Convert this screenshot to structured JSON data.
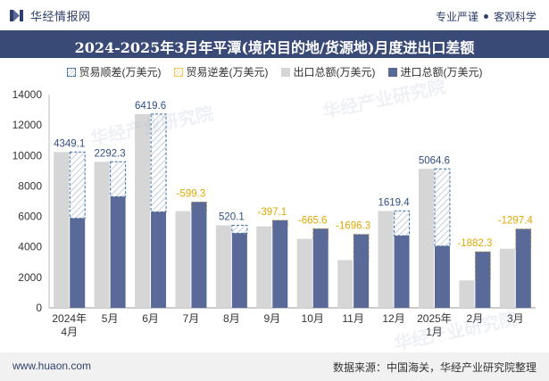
{
  "header": {
    "brand": "华经情报网",
    "tagline_left": "专业严谨",
    "tagline_right": "客观科学"
  },
  "title": "2024-2025年3月年平潭(境内目的地/货源地)月度进出口差额",
  "legend": {
    "surplus": "贸易顺差(万美元)",
    "deficit": "贸易逆差(万美元)",
    "export": "出口总额(万美元)",
    "import": "进口总额(万美元)"
  },
  "footer": {
    "url": "www.huaon.com",
    "source": "数据来源：中国海关，华经产业研究院整理"
  },
  "watermark": "华经产业研究院",
  "colors": {
    "export": "#d6d6d6",
    "import": "#5a6a98",
    "surplus": "#3a6ea5",
    "deficit": "#f5c242",
    "title_bg": "#3a4a76"
  },
  "chart_data": {
    "type": "bar",
    "categories": [
      "2024年4月",
      "5月",
      "6月",
      "7月",
      "8月",
      "9月",
      "10月",
      "11月",
      "12月",
      "2025年1月",
      "2月",
      "3月"
    ],
    "series": [
      {
        "name": "出口总额(万美元)",
        "values": [
          10230,
          9590,
          12720,
          6350,
          5420,
          5350,
          4530,
          3130,
          6360,
          9120,
          1800,
          3880
        ]
      },
      {
        "name": "进口总额(万美元)",
        "values": [
          5880.9,
          7297.7,
          6300.4,
          6949.3,
          4899.9,
          5747.1,
          5195.6,
          4826.3,
          4740.6,
          4055.4,
          3682.3,
          5177.4
        ]
      }
    ],
    "balance": [
      4349.1,
      2292.3,
      6419.6,
      -599.3,
      520.1,
      -397.1,
      -665.6,
      -1696.3,
      1619.4,
      5064.6,
      -1882.3,
      -1297.4
    ],
    "balance_labels": [
      "4349.1",
      "2292.3",
      "6419.6",
      "-599.3",
      "520.1",
      "-397.1",
      "-665.6",
      "-1696.3",
      "1619.4",
      "5064.6",
      "-1882.3",
      "-1297.4"
    ],
    "ylim": [
      0,
      14000
    ],
    "yticks": [
      0,
      2000,
      4000,
      6000,
      8000,
      10000,
      12000,
      14000
    ],
    "grid": false,
    "legend_position": "top"
  }
}
